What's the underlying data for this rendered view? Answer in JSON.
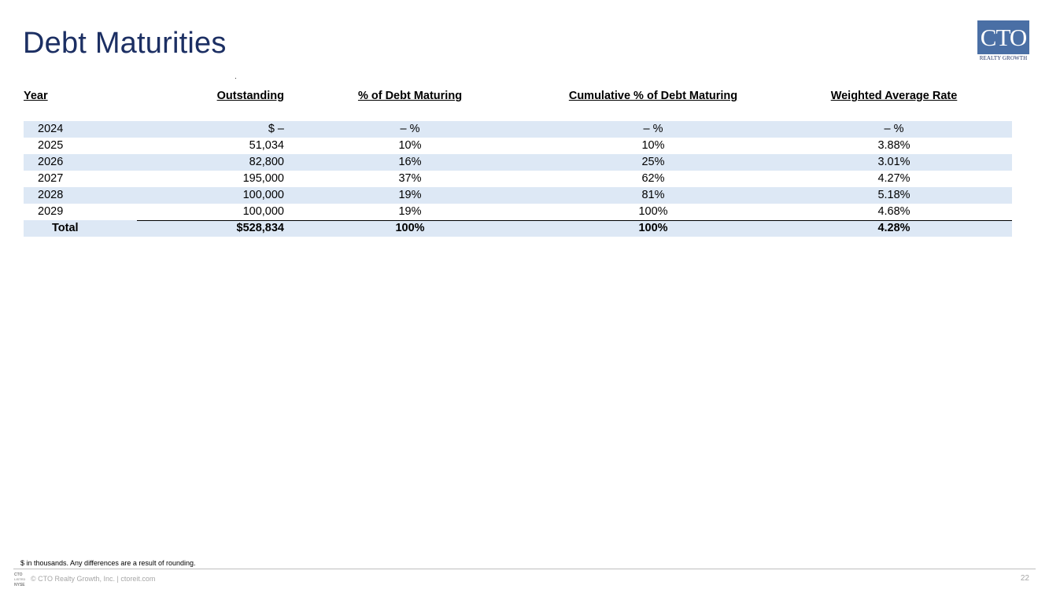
{
  "page": {
    "title": "Debt Maturities",
    "page_number": "22"
  },
  "logo": {
    "main": "CTO",
    "sub": "REALTY GROWTH"
  },
  "table": {
    "headers": {
      "year": "Year",
      "outstanding": "Outstanding",
      "pct": "% of Debt Maturing",
      "cum": "Cumulative % of Debt Maturing",
      "war": "Weighted Average Rate"
    },
    "rows": [
      {
        "year": "2024",
        "outstanding": "$ –",
        "pct": "– %",
        "cum": "– %",
        "war": "– %"
      },
      {
        "year": "2025",
        "outstanding": "51,034",
        "pct": "10%",
        "cum": "10%",
        "war": "3.88%"
      },
      {
        "year": "2026",
        "outstanding": "82,800",
        "pct": "16%",
        "cum": "25%",
        "war": "3.01%"
      },
      {
        "year": "2027",
        "outstanding": "195,000",
        "pct": "37%",
        "cum": "62%",
        "war": "4.27%"
      },
      {
        "year": "2028",
        "outstanding": "100,000",
        "pct": "19%",
        "cum": "81%",
        "war": "5.18%"
      },
      {
        "year": "2029",
        "outstanding": "100,000",
        "pct": "19%",
        "cum": "100%",
        "war": "4.68%"
      }
    ],
    "total": {
      "year": "Total",
      "outstanding": "$528,834",
      "pct": "100%",
      "cum": "100%",
      "war": "4.28%"
    }
  },
  "footer": {
    "footnote": "$ in thousands. Any differences are a result of rounding.",
    "copyright": "© CTO Realty Growth, Inc. | ctoreit.com",
    "exchange_badge": "CTO LISTED NYSE"
  },
  "colors": {
    "title": "#1c2f63",
    "row_shade": "#dde8f5",
    "logo_bg": "#4a6fa5"
  }
}
